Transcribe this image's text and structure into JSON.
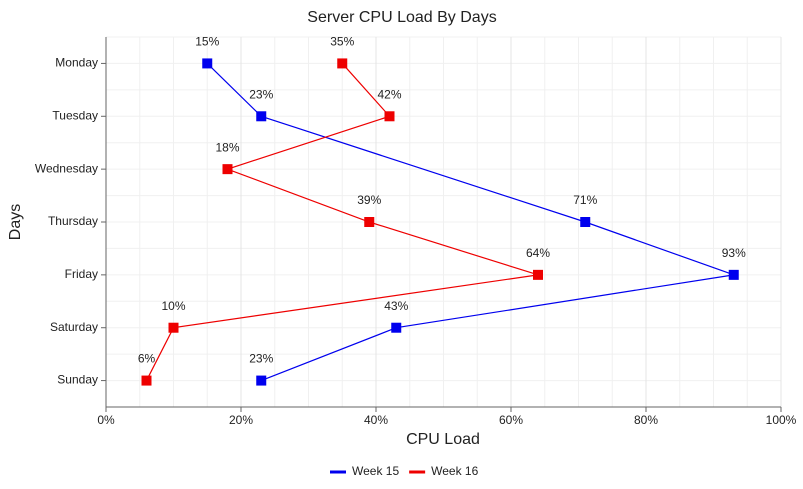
{
  "chart_data": {
    "type": "line",
    "title": "Server CPU Load By Days",
    "xlabel": "CPU Load",
    "ylabel": "Days",
    "categories": [
      "Monday",
      "Tuesday",
      "Wednesday",
      "Thursday",
      "Friday",
      "Saturday",
      "Sunday"
    ],
    "series": [
      {
        "name": "Week 15",
        "color": "#0000ee",
        "values": [
          15,
          23,
          null,
          71,
          93,
          43,
          23
        ],
        "value_labels": [
          "15%",
          "23%",
          null,
          "71%",
          "93%",
          "43%",
          "23%"
        ]
      },
      {
        "name": "Week 16",
        "color": "#ee0000",
        "values": [
          35,
          42,
          18,
          39,
          64,
          10,
          6
        ],
        "value_labels": [
          "35%",
          "42%",
          "18%",
          "39%",
          "64%",
          "10%",
          "6%"
        ]
      }
    ],
    "xlim": [
      0,
      100
    ],
    "xticks": [
      {
        "value": 0,
        "label": "0%"
      },
      {
        "value": 20,
        "label": "20%"
      },
      {
        "value": 40,
        "label": "40%"
      },
      {
        "value": 60,
        "label": "60%"
      },
      {
        "value": 80,
        "label": "80%"
      },
      {
        "value": 100,
        "label": "100%"
      }
    ],
    "grid": true,
    "legend": "bottom"
  }
}
